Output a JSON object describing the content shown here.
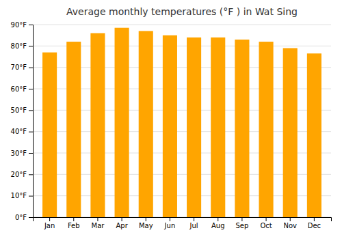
{
  "chart_data": {
    "type": "bar",
    "title": "Average monthly temperatures (°F ) in Wat Sing",
    "categories": [
      "Jan",
      "Feb",
      "Mar",
      "Apr",
      "May",
      "Jun",
      "Jul",
      "Aug",
      "Sep",
      "Oct",
      "Nov",
      "Dec"
    ],
    "values": [
      77,
      82,
      86,
      88.5,
      87,
      85,
      84,
      84,
      83,
      82,
      79,
      76.5
    ],
    "color": "#FFA500",
    "ylim": [
      0,
      90
    ],
    "yticks": [
      {
        "value": 0,
        "label": "0°F"
      },
      {
        "value": 10,
        "label": "10°F"
      },
      {
        "value": 20,
        "label": "20°F"
      },
      {
        "value": 30,
        "label": "30°F"
      },
      {
        "value": 40,
        "label": "40°F"
      },
      {
        "value": 50,
        "label": "50°F"
      },
      {
        "value": 60,
        "label": "60°F"
      },
      {
        "value": 70,
        "label": "70°F"
      },
      {
        "value": 80,
        "label": "80°F"
      },
      {
        "value": 90,
        "label": "90°F"
      }
    ],
    "grid": true
  }
}
